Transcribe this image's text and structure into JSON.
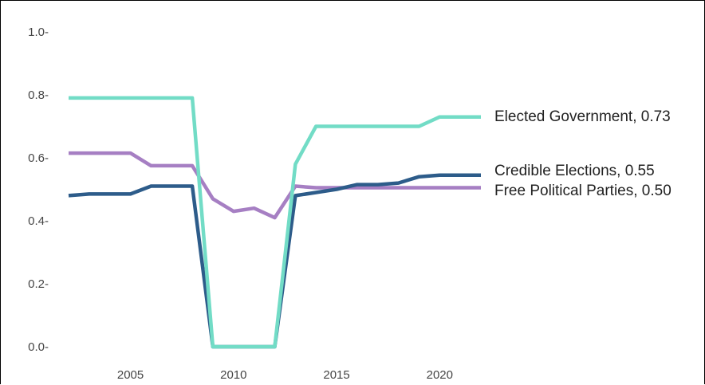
{
  "chart_data": {
    "type": "line",
    "title": "",
    "xlabel": "",
    "ylabel": "",
    "xlim": [
      2002,
      2022
    ],
    "ylim": [
      0,
      1
    ],
    "x_ticks": [
      "2005",
      "2010",
      "2015",
      "2020"
    ],
    "y_ticks": [
      "1.0-",
      "0.8-",
      "0.6-",
      "0.4-",
      "0.2-",
      "0.0-"
    ],
    "grid": false,
    "legend": "none (direct line labels at right)",
    "series": [
      {
        "name": "Elected Government",
        "end_label": "Elected Government, 0.73",
        "color": "#72dcc6",
        "x": [
          2002,
          2003,
          2004,
          2005,
          2006,
          2007,
          2008,
          2009,
          2010,
          2011,
          2012,
          2013,
          2014,
          2015,
          2016,
          2017,
          2018,
          2019,
          2020,
          2021,
          2022
        ],
        "y": [
          0.79,
          0.79,
          0.79,
          0.79,
          0.79,
          0.79,
          0.79,
          0.0,
          0.0,
          0.0,
          0.0,
          0.58,
          0.7,
          0.7,
          0.7,
          0.7,
          0.7,
          0.7,
          0.73,
          0.73,
          0.73
        ]
      },
      {
        "name": "Credible Elections",
        "end_label": "Credible Elections, 0.55",
        "color": "#2d5c8a",
        "x": [
          2002,
          2003,
          2004,
          2005,
          2006,
          2007,
          2008,
          2009,
          2010,
          2011,
          2012,
          2013,
          2014,
          2015,
          2016,
          2017,
          2018,
          2019,
          2020,
          2021,
          2022
        ],
        "y": [
          0.48,
          0.485,
          0.485,
          0.485,
          0.51,
          0.51,
          0.51,
          0.0,
          0.0,
          0.0,
          0.0,
          0.48,
          0.49,
          0.5,
          0.515,
          0.515,
          0.52,
          0.54,
          0.545,
          0.545,
          0.545
        ]
      },
      {
        "name": "Free Political Parties",
        "end_label": "Free Political Parties, 0.50",
        "color": "#a67fc3",
        "x": [
          2002,
          2003,
          2004,
          2005,
          2006,
          2007,
          2008,
          2009,
          2010,
          2011,
          2012,
          2013,
          2014,
          2015,
          2016,
          2017,
          2018,
          2019,
          2020,
          2021,
          2022
        ],
        "y": [
          0.615,
          0.615,
          0.615,
          0.615,
          0.575,
          0.575,
          0.575,
          0.47,
          0.43,
          0.44,
          0.41,
          0.51,
          0.505,
          0.505,
          0.505,
          0.505,
          0.505,
          0.505,
          0.505,
          0.505,
          0.505
        ]
      }
    ]
  }
}
